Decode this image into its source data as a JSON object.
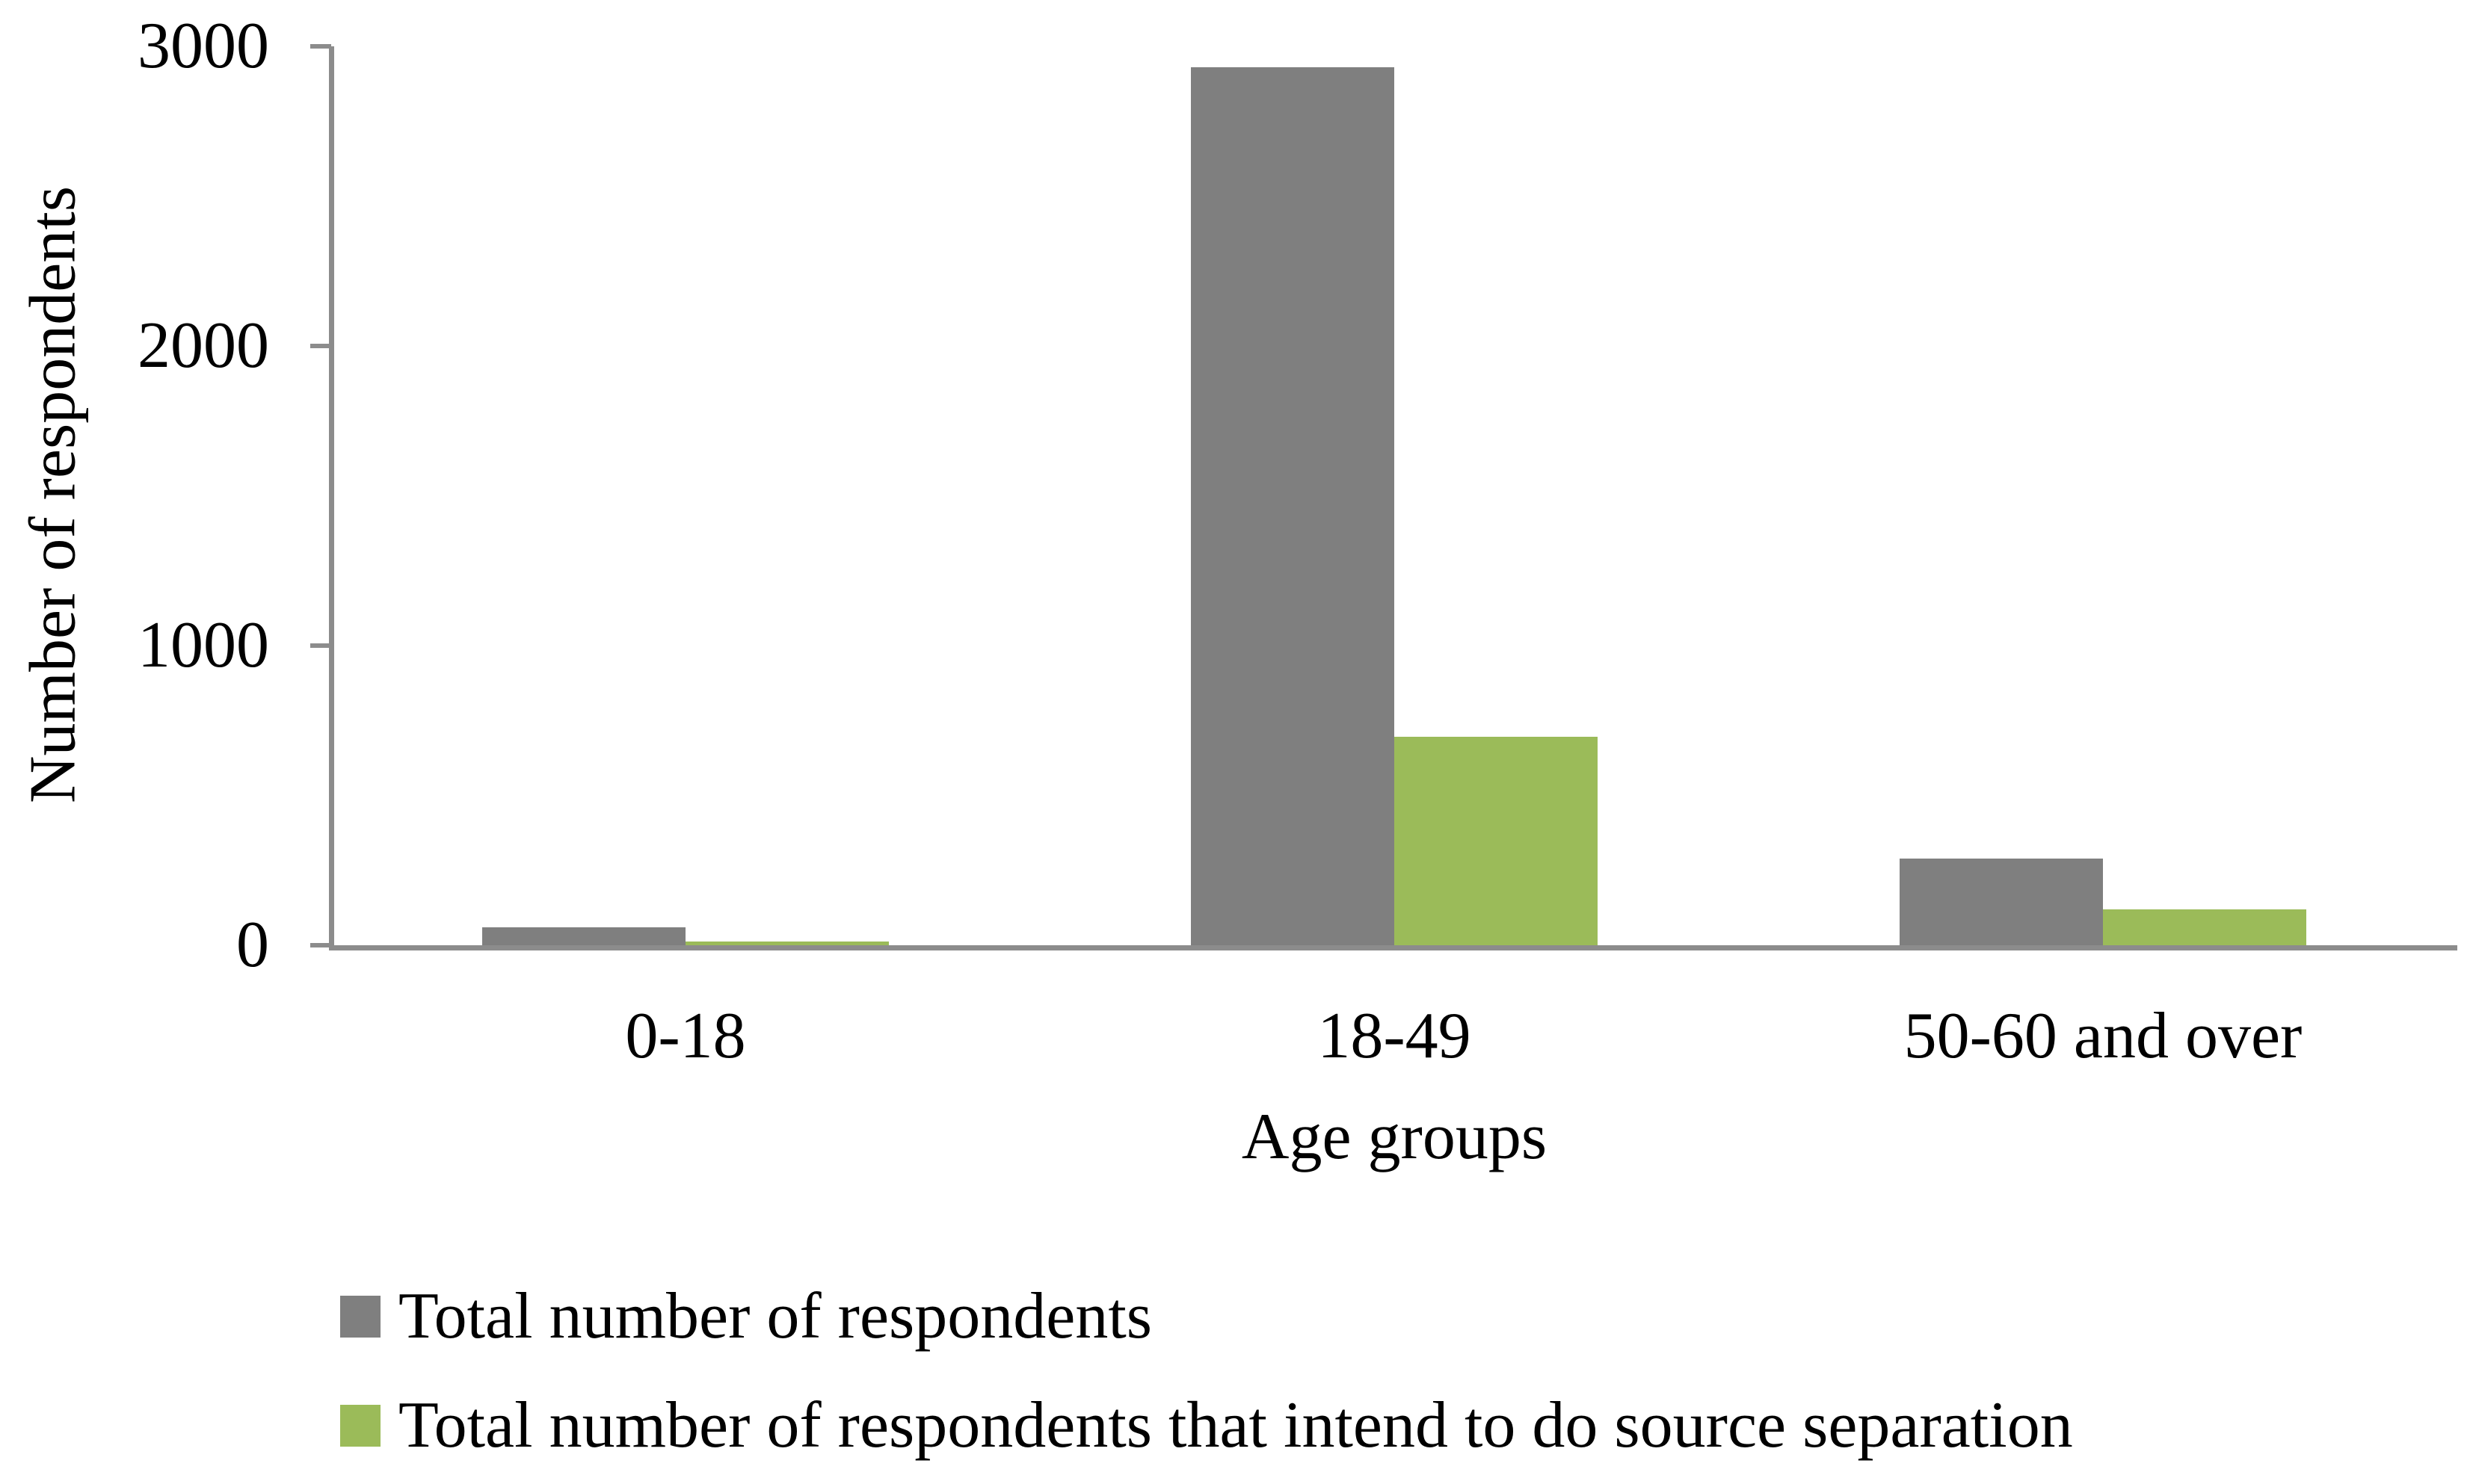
{
  "figure": {
    "background": "#ffffff",
    "text_color": "#000000",
    "axis_color": "#8c8c8c"
  },
  "chart_data": {
    "type": "bar",
    "title": "",
    "xlabel": "Age groups",
    "ylabel": "Number of respondents",
    "categories": [
      "0-18",
      "18-49",
      "50-60 and over"
    ],
    "series": [
      {
        "name": "Total number of respondents",
        "color": "#7f7f7f",
        "values": [
          60,
          2930,
          290
        ]
      },
      {
        "name": "Total number of respondents that intend to do source separation",
        "color": "#9bbb59",
        "values": [
          12,
          695,
          120
        ]
      }
    ],
    "ylim": [
      0,
      3000
    ],
    "yticks": [
      0,
      1000,
      2000,
      3000
    ],
    "grid": false,
    "legend_position": "bottom-left"
  }
}
